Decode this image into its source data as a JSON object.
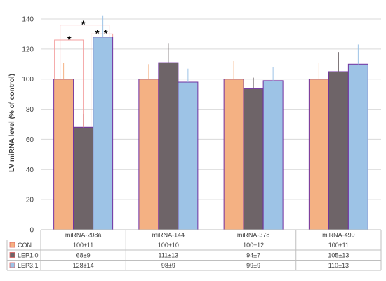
{
  "chart_data": {
    "type": "bar",
    "title": "",
    "ylabel": "LV miRNA level (% of control)",
    "xlabel": "",
    "ylim": [
      0,
      140
    ],
    "yticks": [
      0,
      20,
      40,
      60,
      80,
      100,
      120,
      140
    ],
    "grid": true,
    "categories": [
      "miRNA-208a",
      "miRNA-144",
      "miRNA-378",
      "miRNA-499"
    ],
    "series": [
      {
        "name": "CON",
        "color": "#f4b183",
        "values": [
          100,
          100,
          100,
          100
        ],
        "errors": [
          11,
          10,
          12,
          11
        ],
        "labels": [
          "100±11",
          "100±10",
          "100±12",
          "100±11"
        ]
      },
      {
        "name": "LEP1.0",
        "color": "#6e6468",
        "values": [
          68,
          111,
          94,
          105
        ],
        "errors": [
          9,
          13,
          7,
          13
        ],
        "labels": [
          "68±9",
          "111±13",
          "94±7",
          "105±13"
        ]
      },
      {
        "name": "LEP3.1",
        "color": "#9dc3e6",
        "values": [
          128,
          98,
          99,
          110
        ],
        "errors": [
          14,
          9,
          9,
          13
        ],
        "labels": [
          "128±14",
          "98±9",
          "99±9",
          "110±13"
        ]
      }
    ],
    "significance_marker": "*",
    "data_table": true
  }
}
